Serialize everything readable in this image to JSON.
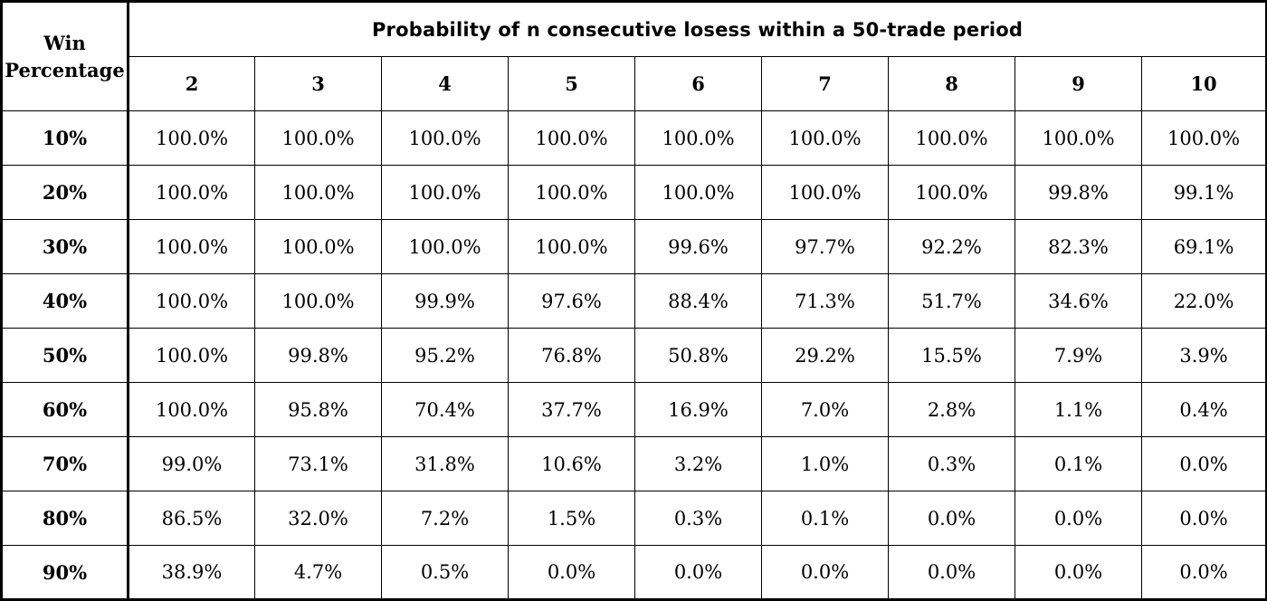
{
  "table": {
    "corner_line1": "Win",
    "corner_line2": "Percentage",
    "title": "Probability of n consecutive losess within a 50-trade period",
    "columns": [
      "2",
      "3",
      "4",
      "5",
      "6",
      "7",
      "8",
      "9",
      "10"
    ],
    "rows": [
      {
        "label": "10%",
        "values": [
          "100.0%",
          "100.0%",
          "100.0%",
          "100.0%",
          "100.0%",
          "100.0%",
          "100.0%",
          "100.0%",
          "100.0%"
        ]
      },
      {
        "label": "20%",
        "values": [
          "100.0%",
          "100.0%",
          "100.0%",
          "100.0%",
          "100.0%",
          "100.0%",
          "100.0%",
          "99.8%",
          "99.1%"
        ]
      },
      {
        "label": "30%",
        "values": [
          "100.0%",
          "100.0%",
          "100.0%",
          "100.0%",
          "99.6%",
          "97.7%",
          "92.2%",
          "82.3%",
          "69.1%"
        ]
      },
      {
        "label": "40%",
        "values": [
          "100.0%",
          "100.0%",
          "99.9%",
          "97.6%",
          "88.4%",
          "71.3%",
          "51.7%",
          "34.6%",
          "22.0%"
        ]
      },
      {
        "label": "50%",
        "values": [
          "100.0%",
          "99.8%",
          "95.2%",
          "76.8%",
          "50.8%",
          "29.2%",
          "15.5%",
          "7.9%",
          "3.9%"
        ]
      },
      {
        "label": "60%",
        "values": [
          "100.0%",
          "95.8%",
          "70.4%",
          "37.7%",
          "16.9%",
          "7.0%",
          "2.8%",
          "1.1%",
          "0.4%"
        ]
      },
      {
        "label": "70%",
        "values": [
          "99.0%",
          "73.1%",
          "31.8%",
          "10.6%",
          "3.2%",
          "1.0%",
          "0.3%",
          "0.1%",
          "0.0%"
        ]
      },
      {
        "label": "80%",
        "values": [
          "86.5%",
          "32.0%",
          "7.2%",
          "1.5%",
          "0.3%",
          "0.1%",
          "0.0%",
          "0.0%",
          "0.0%"
        ]
      },
      {
        "label": "90%",
        "values": [
          "38.9%",
          "4.7%",
          "0.5%",
          "0.0%",
          "0.0%",
          "0.0%",
          "0.0%",
          "0.0%",
          "0.0%"
        ]
      }
    ]
  }
}
